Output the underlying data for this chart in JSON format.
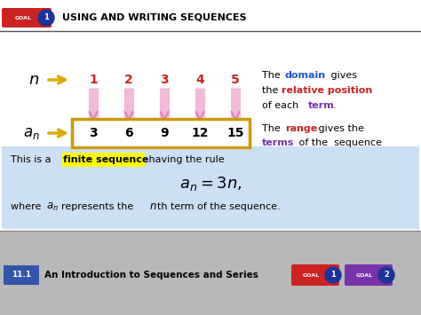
{
  "bg_color": "#ebebeb",
  "header_text": "USING AND WRITING SEQUENCES",
  "goal_label": "GOAL",
  "goal_num": "1",
  "domain_values": [
    "1",
    "2",
    "3",
    "4",
    "5"
  ],
  "range_values": [
    "3",
    "6",
    "9",
    "12",
    "15"
  ],
  "n_label": "n",
  "an_label": "a_n",
  "footer_num": "11.1",
  "footer_text": "An Introduction to Sequences and Series",
  "goal1_color": "#cc2222",
  "goal2_color": "#7733aa",
  "domain_color": "#2255cc",
  "rel_pos_color": "#cc2222",
  "term_color": "#7733aa",
  "range_color": "#cc2222",
  "terms_color": "#7733aa",
  "yellow_color": "#ddaa00",
  "pink_arrow": "#e080c0",
  "pink_light": "#f4b8d8",
  "box_bg": "#cce0f5",
  "highlight_color": "#ffff00",
  "footer_bg": "#b8b8b8",
  "footer_num_bg": "#3355aa",
  "range_box_color": "#cc9900",
  "header_underline": "#555555"
}
